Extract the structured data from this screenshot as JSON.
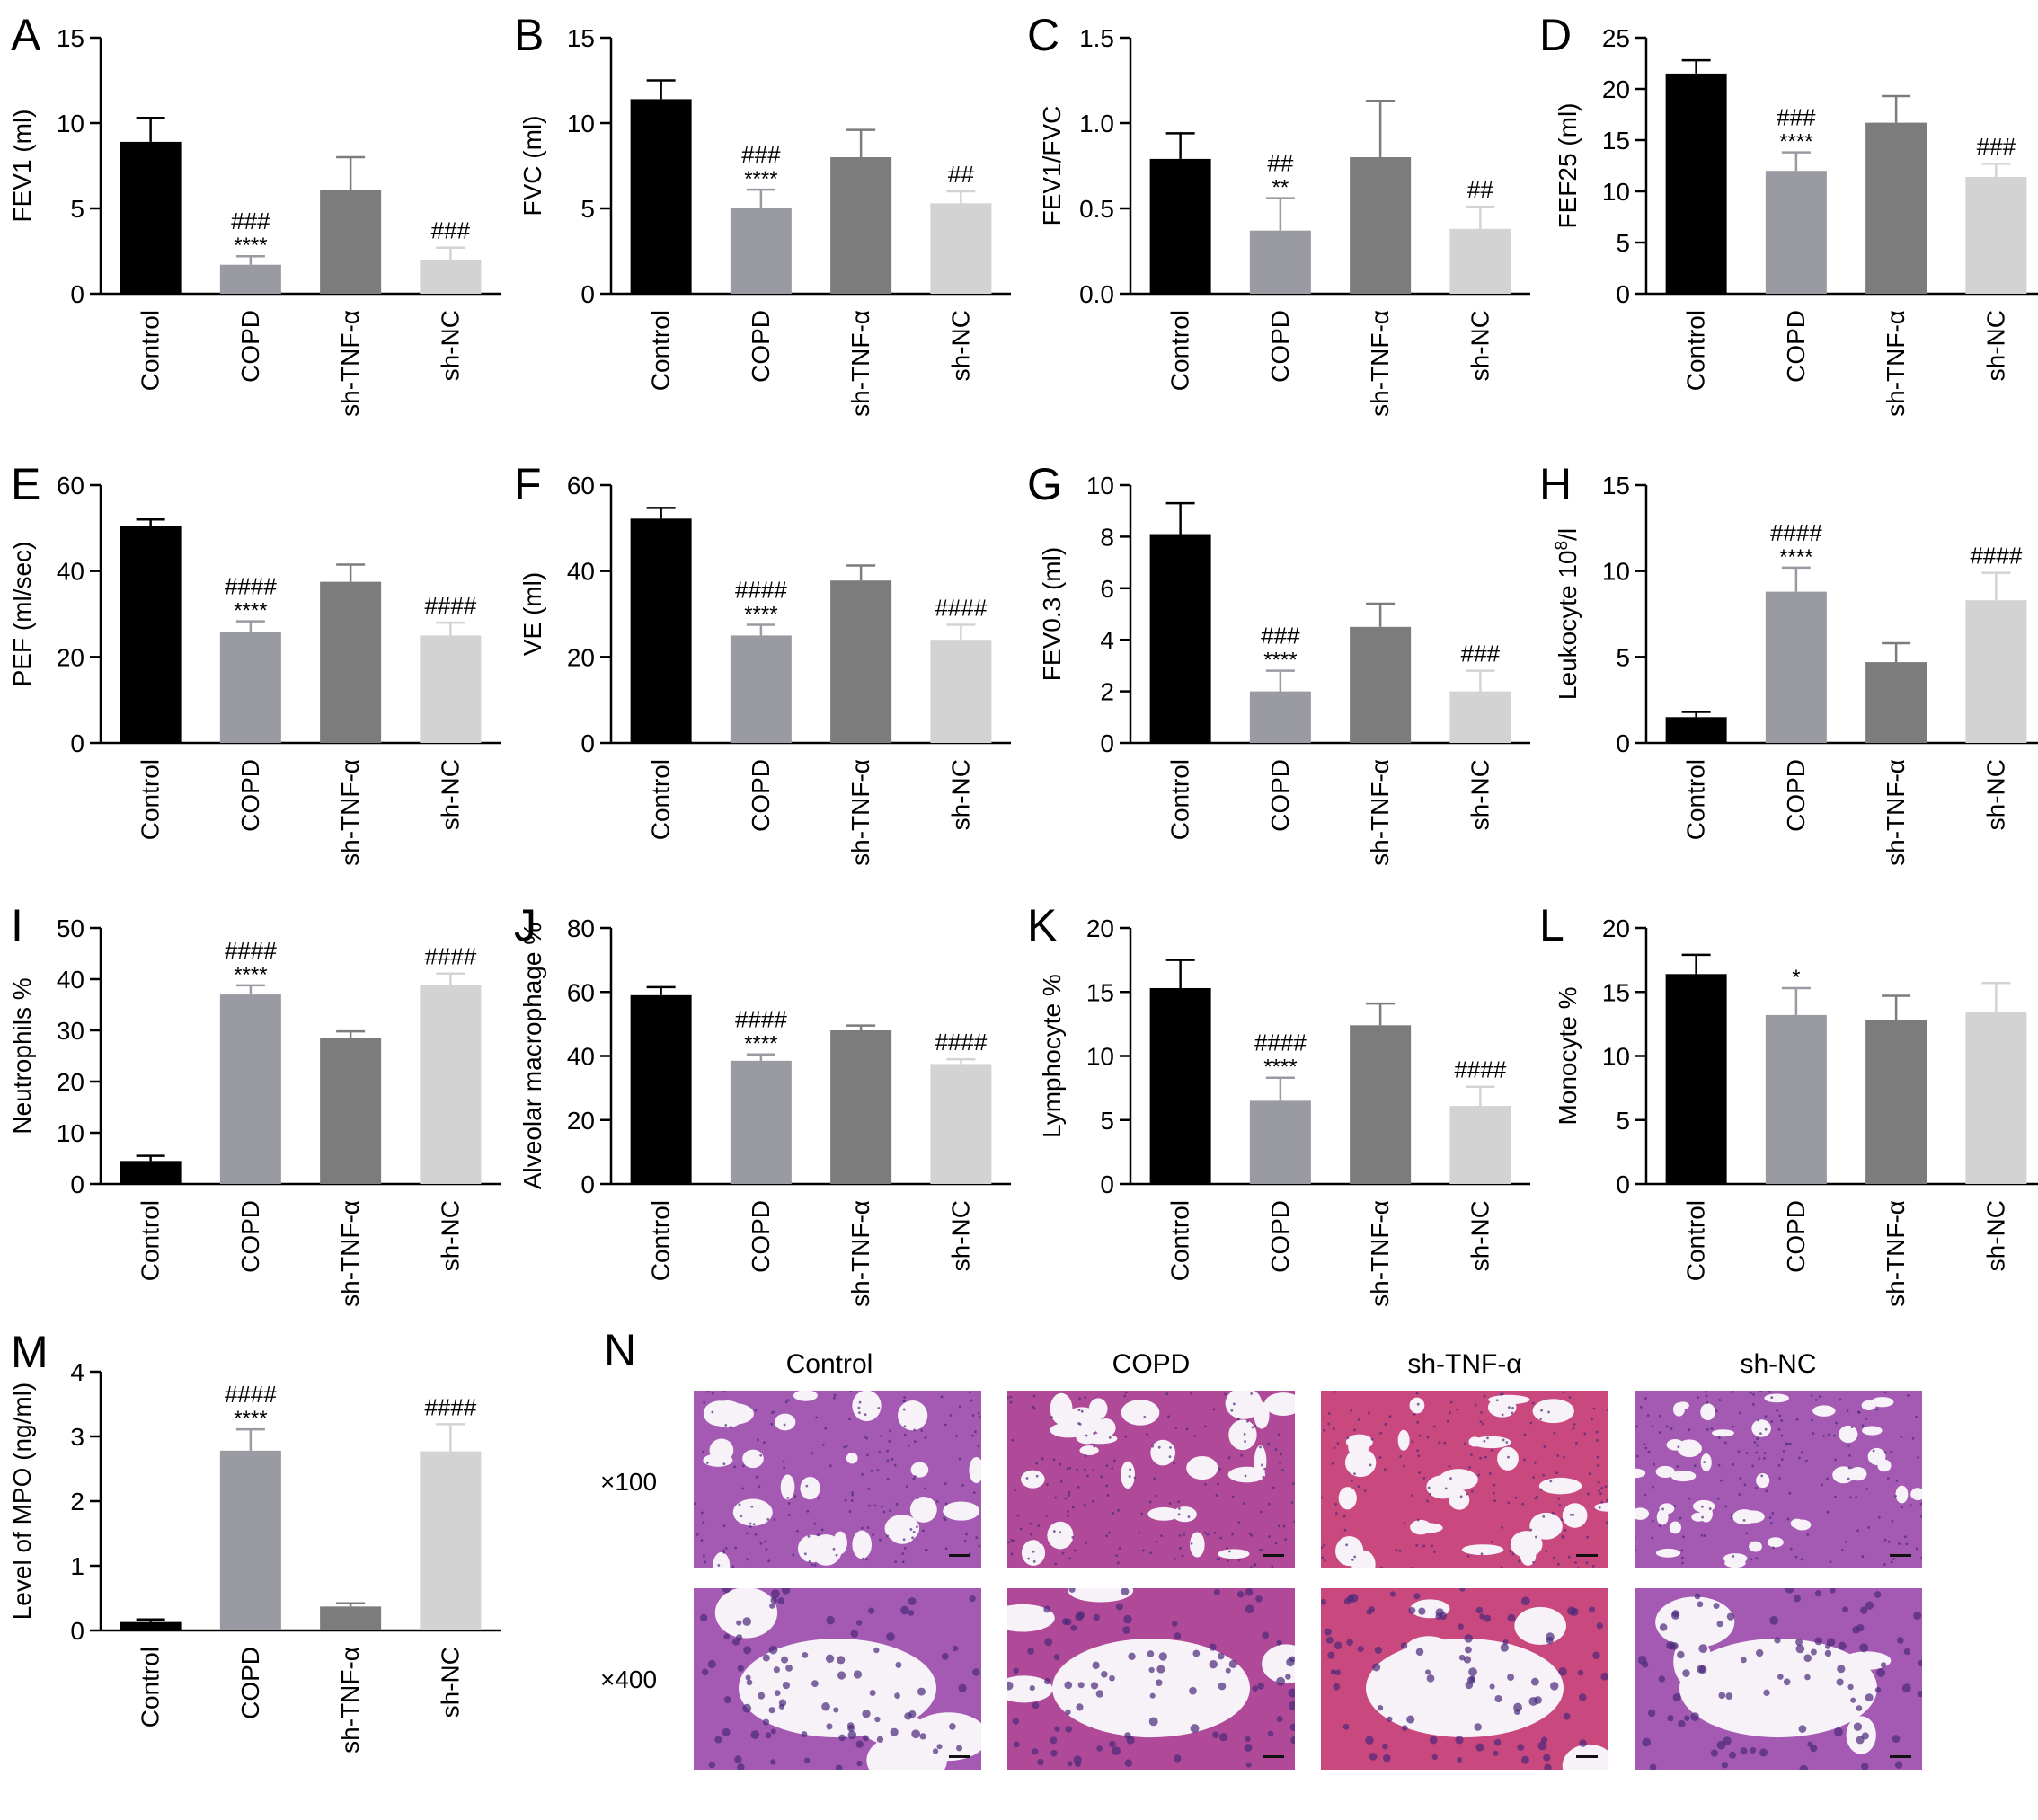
{
  "panels": [
    {
      "letter": "A",
      "ylabel": "FEV1 (ml)",
      "ylim": [
        0,
        15
      ],
      "ticks": [
        "0",
        "5",
        "10",
        "15"
      ],
      "values": [
        8.9,
        1.7,
        6.1,
        2.0
      ],
      "errors": [
        1.4,
        0.5,
        1.9,
        0.7
      ],
      "annot": [
        [
          "",
          ""
        ],
        [
          "###",
          "****"
        ],
        [
          "",
          ""
        ],
        [
          "###",
          ""
        ]
      ]
    },
    {
      "letter": "B",
      "ylabel": "FVC (ml)",
      "ylim": [
        0,
        15
      ],
      "ticks": [
        "0",
        "5",
        "10",
        "15"
      ],
      "values": [
        11.4,
        5.0,
        8.0,
        5.3
      ],
      "errors": [
        1.1,
        1.1,
        1.6,
        0.7
      ],
      "annot": [
        [
          "",
          ""
        ],
        [
          "###",
          "****"
        ],
        [
          "",
          ""
        ],
        [
          "##",
          ""
        ]
      ]
    },
    {
      "letter": "C",
      "ylabel": "FEV1/FVC",
      "ylim": [
        0,
        1.5
      ],
      "ticks": [
        "0.0",
        "0.5",
        "1.0",
        "1.5"
      ],
      "values": [
        0.79,
        0.37,
        0.8,
        0.38
      ],
      "errors": [
        0.15,
        0.19,
        0.33,
        0.13
      ],
      "annot": [
        [
          "",
          ""
        ],
        [
          "##",
          "**"
        ],
        [
          "",
          ""
        ],
        [
          "##",
          ""
        ]
      ]
    },
    {
      "letter": "D",
      "ylabel": "FEF25 (ml)",
      "ylim": [
        0,
        25
      ],
      "ticks": [
        "0",
        "5",
        "10",
        "15",
        "20",
        "25"
      ],
      "values": [
        21.5,
        12.0,
        16.7,
        11.4
      ],
      "errors": [
        1.3,
        1.8,
        2.6,
        1.3
      ],
      "annot": [
        [
          "",
          ""
        ],
        [
          "###",
          "****"
        ],
        [
          "",
          ""
        ],
        [
          "###",
          ""
        ]
      ]
    },
    {
      "letter": "E",
      "ylabel": "PEF (ml/sec)",
      "ylim": [
        0,
        60
      ],
      "ticks": [
        "0",
        "20",
        "40",
        "60"
      ],
      "values": [
        50.5,
        25.8,
        37.5,
        25.0
      ],
      "errors": [
        1.5,
        2.5,
        4.0,
        3.0
      ],
      "annot": [
        [
          "",
          ""
        ],
        [
          "####",
          "****"
        ],
        [
          "",
          ""
        ],
        [
          "####",
          ""
        ]
      ]
    },
    {
      "letter": "F",
      "ylabel": "VE (ml)",
      "ylim": [
        0,
        60
      ],
      "ticks": [
        "0",
        "20",
        "40",
        "60"
      ],
      "values": [
        52.2,
        25.0,
        37.8,
        24.0
      ],
      "errors": [
        2.5,
        2.5,
        3.5,
        3.5
      ],
      "annot": [
        [
          "",
          ""
        ],
        [
          "####",
          "****"
        ],
        [
          "",
          ""
        ],
        [
          "####",
          ""
        ]
      ]
    },
    {
      "letter": "G",
      "ylabel": "FEV0.3 (ml)",
      "ylim": [
        0,
        10
      ],
      "ticks": [
        "0",
        "2",
        "4",
        "6",
        "8",
        "10"
      ],
      "values": [
        8.1,
        2.0,
        4.5,
        2.0
      ],
      "errors": [
        1.2,
        0.8,
        0.9,
        0.8
      ],
      "annot": [
        [
          "",
          ""
        ],
        [
          "###",
          "****"
        ],
        [
          "",
          ""
        ],
        [
          "###",
          ""
        ]
      ]
    },
    {
      "letter": "H",
      "ylabel": "Leukocyte 10",
      "ylabel_sup": "8",
      "ylabel_tail": "/l",
      "ylim": [
        0,
        15
      ],
      "ticks": [
        "0",
        "5",
        "10",
        "15"
      ],
      "values": [
        1.5,
        8.8,
        4.7,
        8.3
      ],
      "errors": [
        0.3,
        1.4,
        1.1,
        1.6
      ],
      "annot": [
        [
          "",
          ""
        ],
        [
          "####",
          "****"
        ],
        [
          "",
          ""
        ],
        [
          "####",
          ""
        ]
      ]
    },
    {
      "letter": "I",
      "ylabel": "Neutrophils %",
      "ylim": [
        0,
        50
      ],
      "ticks": [
        "0",
        "10",
        "20",
        "30",
        "40",
        "50"
      ],
      "values": [
        4.5,
        37.0,
        28.5,
        38.8
      ],
      "errors": [
        1.0,
        1.8,
        1.3,
        2.3
      ],
      "annot": [
        [
          "",
          ""
        ],
        [
          "####",
          "****"
        ],
        [
          "",
          ""
        ],
        [
          "####",
          ""
        ]
      ]
    },
    {
      "letter": "J",
      "ylabel": "Alveolar macrophage %",
      "ylim": [
        0,
        80
      ],
      "ticks": [
        "0",
        "20",
        "40",
        "60",
        "80"
      ],
      "values": [
        59.0,
        38.5,
        48.0,
        37.5
      ],
      "errors": [
        2.5,
        2.0,
        1.5,
        1.5
      ],
      "annot": [
        [
          "",
          ""
        ],
        [
          "####",
          "****"
        ],
        [
          "",
          ""
        ],
        [
          "####",
          ""
        ]
      ]
    },
    {
      "letter": "K",
      "ylabel": "Lymphocyte %",
      "ylim": [
        0,
        20
      ],
      "ticks": [
        "0",
        "5",
        "10",
        "15",
        "20"
      ],
      "values": [
        15.3,
        6.5,
        12.4,
        6.1
      ],
      "errors": [
        2.2,
        1.8,
        1.7,
        1.5
      ],
      "annot": [
        [
          "",
          ""
        ],
        [
          "####",
          "****"
        ],
        [
          "",
          ""
        ],
        [
          "####",
          ""
        ]
      ]
    },
    {
      "letter": "L",
      "ylabel": "Monocyte %",
      "ylim": [
        0,
        20
      ],
      "ticks": [
        "0",
        "5",
        "10",
        "15",
        "20"
      ],
      "values": [
        16.4,
        13.2,
        12.8,
        13.4
      ],
      "errors": [
        1.5,
        2.1,
        1.9,
        2.3
      ],
      "annot": [
        [
          "",
          ""
        ],
        [
          "",
          "*"
        ],
        [
          "",
          ""
        ],
        [
          "",
          ""
        ]
      ]
    },
    {
      "letter": "M",
      "ylabel": "Level of MPO (ng/ml)",
      "ylim": [
        0,
        4
      ],
      "ticks": [
        "0",
        "1",
        "2",
        "3",
        "4"
      ],
      "values": [
        0.13,
        2.78,
        0.37,
        2.77
      ],
      "errors": [
        0.04,
        0.33,
        0.05,
        0.42
      ],
      "annot": [
        [
          "",
          ""
        ],
        [
          "####",
          "****"
        ],
        [
          "",
          ""
        ],
        [
          "####",
          ""
        ]
      ]
    }
  ],
  "categories": [
    "Control",
    "COPD",
    "sh-TNF-α",
    "sh-NC"
  ],
  "bar_colors": [
    "#000000",
    "#999aa2",
    "#7c7c7c",
    "#d3d3d3"
  ],
  "histology": {
    "letter": "N",
    "columns": [
      "Control",
      "COPD",
      "sh-TNF-α",
      "sh-NC"
    ],
    "magnifications": [
      "×100",
      "×400"
    ]
  },
  "chart_data": [
    {
      "type": "bar",
      "ylabel": "FEV1 (ml)",
      "categories": [
        "Control",
        "COPD",
        "sh-TNF-α",
        "sh-NC"
      ],
      "values": [
        8.9,
        1.7,
        6.1,
        2.0
      ],
      "errors": [
        1.4,
        0.5,
        1.9,
        0.7
      ],
      "ylim": [
        0,
        15
      ]
    },
    {
      "type": "bar",
      "ylabel": "FVC (ml)",
      "categories": [
        "Control",
        "COPD",
        "sh-TNF-α",
        "sh-NC"
      ],
      "values": [
        11.4,
        5.0,
        8.0,
        5.3
      ],
      "errors": [
        1.1,
        1.1,
        1.6,
        0.7
      ],
      "ylim": [
        0,
        15
      ]
    },
    {
      "type": "bar",
      "ylabel": "FEV1/FVC",
      "categories": [
        "Control",
        "COPD",
        "sh-TNF-α",
        "sh-NC"
      ],
      "values": [
        0.79,
        0.37,
        0.8,
        0.38
      ],
      "errors": [
        0.15,
        0.19,
        0.33,
        0.13
      ],
      "ylim": [
        0,
        1.5
      ]
    },
    {
      "type": "bar",
      "ylabel": "FEF25 (ml)",
      "categories": [
        "Control",
        "COPD",
        "sh-TNF-α",
        "sh-NC"
      ],
      "values": [
        21.5,
        12.0,
        16.7,
        11.4
      ],
      "errors": [
        1.3,
        1.8,
        2.6,
        1.3
      ],
      "ylim": [
        0,
        25
      ]
    },
    {
      "type": "bar",
      "ylabel": "PEF (ml/sec)",
      "categories": [
        "Control",
        "COPD",
        "sh-TNF-α",
        "sh-NC"
      ],
      "values": [
        50.5,
        25.8,
        37.5,
        25.0
      ],
      "errors": [
        1.5,
        2.5,
        4.0,
        3.0
      ],
      "ylim": [
        0,
        60
      ]
    },
    {
      "type": "bar",
      "ylabel": "VE (ml)",
      "categories": [
        "Control",
        "COPD",
        "sh-TNF-α",
        "sh-NC"
      ],
      "values": [
        52.2,
        25.0,
        37.8,
        24.0
      ],
      "errors": [
        2.5,
        2.5,
        3.5,
        3.5
      ],
      "ylim": [
        0,
        60
      ]
    },
    {
      "type": "bar",
      "ylabel": "FEV0.3 (ml)",
      "categories": [
        "Control",
        "COPD",
        "sh-TNF-α",
        "sh-NC"
      ],
      "values": [
        8.1,
        2.0,
        4.5,
        2.0
      ],
      "errors": [
        1.2,
        0.8,
        0.9,
        0.8
      ],
      "ylim": [
        0,
        10
      ]
    },
    {
      "type": "bar",
      "ylabel": "Leukocyte 10^8/l",
      "categories": [
        "Control",
        "COPD",
        "sh-TNF-α",
        "sh-NC"
      ],
      "values": [
        1.5,
        8.8,
        4.7,
        8.3
      ],
      "errors": [
        0.3,
        1.4,
        1.1,
        1.6
      ],
      "ylim": [
        0,
        15
      ]
    },
    {
      "type": "bar",
      "ylabel": "Neutrophils %",
      "categories": [
        "Control",
        "COPD",
        "sh-TNF-α",
        "sh-NC"
      ],
      "values": [
        4.5,
        37.0,
        28.5,
        38.8
      ],
      "errors": [
        1.0,
        1.8,
        1.3,
        2.3
      ],
      "ylim": [
        0,
        50
      ]
    },
    {
      "type": "bar",
      "ylabel": "Alveolar macrophage %",
      "categories": [
        "Control",
        "COPD",
        "sh-TNF-α",
        "sh-NC"
      ],
      "values": [
        59.0,
        38.5,
        48.0,
        37.5
      ],
      "errors": [
        2.5,
        2.0,
        1.5,
        1.5
      ],
      "ylim": [
        0,
        80
      ]
    },
    {
      "type": "bar",
      "ylabel": "Lymphocyte %",
      "categories": [
        "Control",
        "COPD",
        "sh-TNF-α",
        "sh-NC"
      ],
      "values": [
        15.3,
        6.5,
        12.4,
        6.1
      ],
      "errors": [
        2.2,
        1.8,
        1.7,
        1.5
      ],
      "ylim": [
        0,
        20
      ]
    },
    {
      "type": "bar",
      "ylabel": "Monocyte %",
      "categories": [
        "Control",
        "COPD",
        "sh-TNF-α",
        "sh-NC"
      ],
      "values": [
        16.4,
        13.2,
        12.8,
        13.4
      ],
      "errors": [
        1.5,
        2.1,
        1.9,
        2.3
      ],
      "ylim": [
        0,
        20
      ]
    },
    {
      "type": "bar",
      "ylabel": "Level of MPO (ng/ml)",
      "categories": [
        "Control",
        "COPD",
        "sh-TNF-α",
        "sh-NC"
      ],
      "values": [
        0.13,
        2.78,
        0.37,
        2.77
      ],
      "errors": [
        0.04,
        0.33,
        0.05,
        0.42
      ],
      "ylim": [
        0,
        4
      ]
    }
  ]
}
